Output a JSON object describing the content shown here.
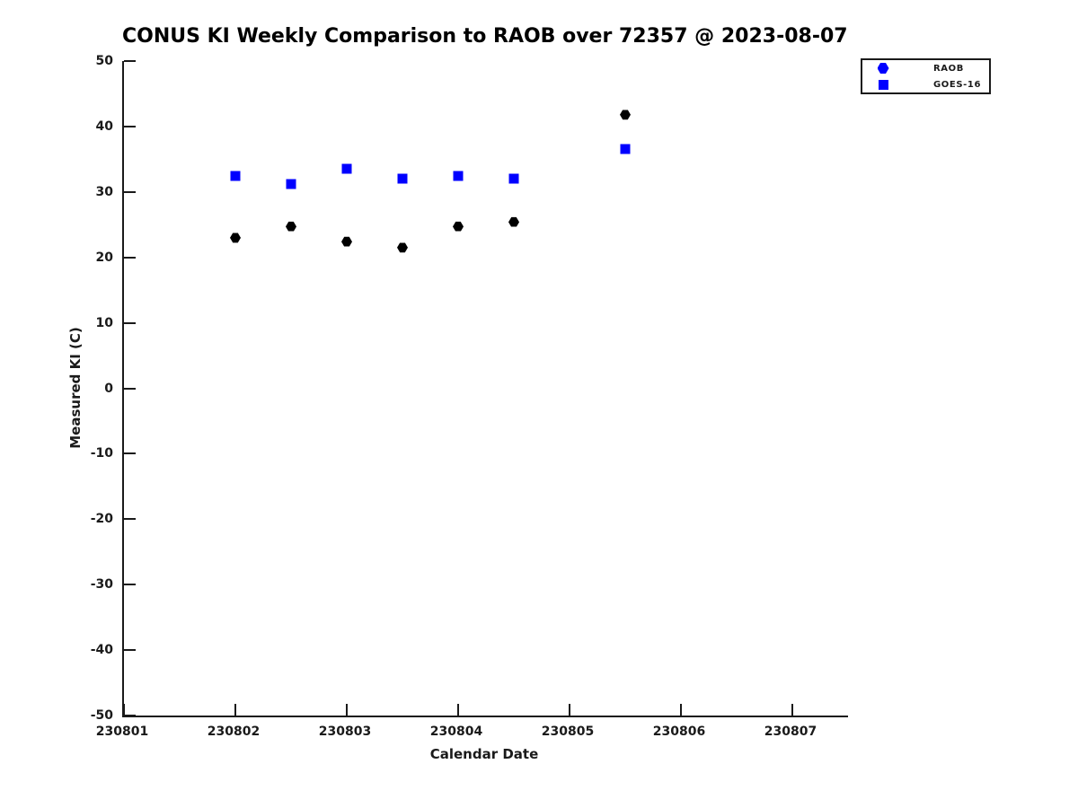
{
  "title": "CONUS KI Weekly Comparison to RAOB over 72357 @ 2023-08-07",
  "colors": {
    "raob_plot_marker": "#000000",
    "raob_legend_marker": "#0000ff",
    "goes16_marker": "#0000ff",
    "axis": "#1a1a1a",
    "text": "#1a1a1a",
    "background": "#ffffff"
  },
  "chart_data": {
    "type": "scatter",
    "title": "CONUS KI Weekly Comparison to RAOB over 72357 @ 2023-08-07",
    "xlabel": "Calendar Date",
    "ylabel": "Measured KI (C)",
    "xlim": [
      230801,
      230807.5
    ],
    "ylim": [
      -50,
      50
    ],
    "x_ticks": [
      "230801",
      "230802",
      "230803",
      "230804",
      "230805",
      "230806",
      "230807"
    ],
    "y_ticks": [
      "50",
      "40",
      "30",
      "20",
      "10",
      "0",
      "-10",
      "-20",
      "-30",
      "-40",
      "-50"
    ],
    "grid": false,
    "legend_position": "top-right",
    "series": [
      {
        "name": "RAOB",
        "marker": "hexagon",
        "color": "#000000",
        "legend_color": "#0000ff",
        "points": [
          [
            230802.0,
            23.0
          ],
          [
            230802.5,
            24.7
          ],
          [
            230803.0,
            22.4
          ],
          [
            230803.5,
            21.5
          ],
          [
            230804.0,
            24.7
          ],
          [
            230804.5,
            25.4
          ],
          [
            230805.5,
            41.8
          ]
        ]
      },
      {
        "name": "GOES-16",
        "marker": "square",
        "color": "#0000ff",
        "legend_color": "#0000ff",
        "points": [
          [
            230802.0,
            32.4
          ],
          [
            230802.5,
            31.2
          ],
          [
            230803.0,
            33.5
          ],
          [
            230803.5,
            32.0
          ],
          [
            230804.0,
            32.4
          ],
          [
            230804.5,
            32.0
          ],
          [
            230805.5,
            36.6
          ]
        ]
      }
    ]
  }
}
